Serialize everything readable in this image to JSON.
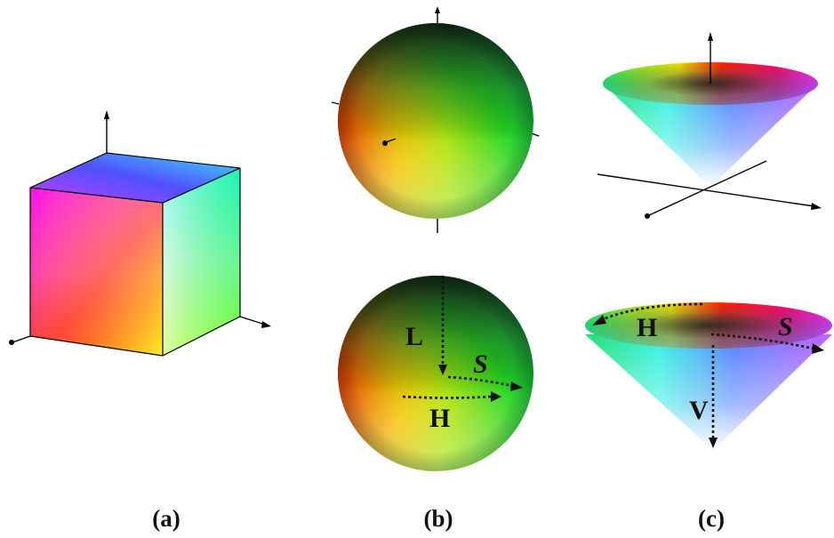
{
  "panels": [
    {
      "id": "rgb-cube",
      "caption": "(a)"
    },
    {
      "id": "hsl-sphere",
      "caption": "(b)",
      "labels": [
        "L",
        "S",
        "H"
      ]
    },
    {
      "id": "hsv-cone",
      "caption": "(c)",
      "labels": [
        "H",
        "S",
        "V"
      ]
    }
  ],
  "colors": {
    "red": "#ff0000",
    "yellow": "#ffff00",
    "green": "#00ff00",
    "cyan": "#00ffff",
    "blue": "#0000ff",
    "magenta": "#ff00ff",
    "black": "#000000",
    "white": "#ffffff"
  }
}
